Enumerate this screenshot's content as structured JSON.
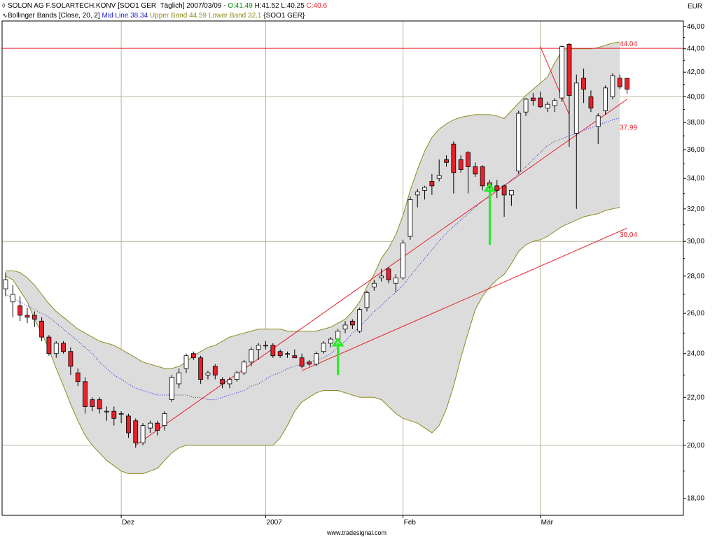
{
  "header": {
    "line1": {
      "instrument": "SOLON AG F.SOLARTECH.KONV [SOO1 GER  Täglich] 2007/03/09 - ",
      "open": "O:41.49",
      "high": " H:41.52",
      "low": " L:40.25",
      "close": " C:40.6"
    },
    "line2": {
      "indicator": "Bollinger Bands [Close, 20, 2]",
      "mid": " Mid Line 38.34",
      "bands": " Upper Band 44.59 Lower Band 32.1",
      "symbol": " {SOO1 GER}"
    }
  },
  "currency": "EUR",
  "footer": "www.tradesignal.com",
  "colors": {
    "up_candle": "#ffffff",
    "down_candle": "#e8202a",
    "band_fill": "#dcdcdc",
    "band_line": "#8c8a1e",
    "mid_line": "#2222cc",
    "trend_line": "#e8202a",
    "arrow": "#22ee22",
    "open_text": "#0a8a0a",
    "high_text": "#000000",
    "low_text": "#000000",
    "close_text": "#e8202a",
    "mid_text": "#2222cc",
    "bands_text": "#8c8a1e"
  },
  "chart_data": {
    "type": "candlestick",
    "ylim": [
      17.4,
      46.5
    ],
    "y_scale": "log",
    "yticks": [
      18,
      20,
      22,
      24,
      26,
      28,
      30,
      32,
      34,
      36,
      38,
      40,
      42,
      44,
      46
    ],
    "ytick_labels": [
      "18,00",
      "20,00",
      "22,00",
      "24,00",
      "26,00",
      "28,00",
      "30,00",
      "32,00",
      "34,00",
      "36,00",
      "38,00",
      "40,00",
      "42,00",
      "44,00",
      "46,00"
    ],
    "gridlines_y": [
      20,
      30,
      40
    ],
    "x_labels": [
      {
        "label": "Dez",
        "index": 16
      },
      {
        "label": "2007",
        "index": 36
      },
      {
        "label": "Feb",
        "index": 55
      },
      {
        "label": "Mär",
        "index": 74
      }
    ],
    "candles": [
      {
        "o": 27.3,
        "h": 28.2,
        "l": 26.9,
        "c": 27.8
      },
      {
        "o": 26.6,
        "h": 27.5,
        "l": 25.8,
        "c": 27.0
      },
      {
        "o": 26.4,
        "h": 26.9,
        "l": 25.6,
        "c": 25.9
      },
      {
        "o": 25.9,
        "h": 26.3,
        "l": 25.5,
        "c": 25.8
      },
      {
        "o": 25.9,
        "h": 26.1,
        "l": 25.3,
        "c": 25.7
      },
      {
        "o": 25.6,
        "h": 25.8,
        "l": 24.6,
        "c": 24.8
      },
      {
        "o": 24.8,
        "h": 24.9,
        "l": 23.9,
        "c": 24.0
      },
      {
        "o": 24.0,
        "h": 24.6,
        "l": 23.8,
        "c": 24.5
      },
      {
        "o": 24.5,
        "h": 24.6,
        "l": 24.0,
        "c": 24.1
      },
      {
        "o": 24.1,
        "h": 24.3,
        "l": 23.0,
        "c": 23.4
      },
      {
        "o": 23.1,
        "h": 23.3,
        "l": 22.5,
        "c": 22.7
      },
      {
        "o": 22.7,
        "h": 22.9,
        "l": 21.3,
        "c": 21.6
      },
      {
        "o": 21.9,
        "h": 22.0,
        "l": 21.4,
        "c": 21.6
      },
      {
        "o": 21.9,
        "h": 22.0,
        "l": 21.3,
        "c": 21.5
      },
      {
        "o": 21.4,
        "h": 21.6,
        "l": 21.0,
        "c": 21.4
      },
      {
        "o": 21.4,
        "h": 21.6,
        "l": 20.8,
        "c": 21.1
      },
      {
        "o": 21.3,
        "h": 21.4,
        "l": 20.9,
        "c": 21.3
      },
      {
        "o": 21.2,
        "h": 21.3,
        "l": 20.3,
        "c": 20.5
      },
      {
        "o": 21.0,
        "h": 21.1,
        "l": 19.9,
        "c": 20.1
      },
      {
        "o": 20.1,
        "h": 20.9,
        "l": 20.0,
        "c": 20.8
      },
      {
        "o": 20.7,
        "h": 21.0,
        "l": 20.5,
        "c": 20.9
      },
      {
        "o": 20.9,
        "h": 21.0,
        "l": 20.4,
        "c": 20.6
      },
      {
        "o": 20.8,
        "h": 21.4,
        "l": 20.6,
        "c": 21.3
      },
      {
        "o": 21.9,
        "h": 23.0,
        "l": 21.8,
        "c": 22.9
      },
      {
        "o": 22.6,
        "h": 23.3,
        "l": 22.4,
        "c": 23.1
      },
      {
        "o": 23.3,
        "h": 24.0,
        "l": 23.1,
        "c": 23.9
      },
      {
        "o": 24.0,
        "h": 24.1,
        "l": 23.7,
        "c": 23.8
      },
      {
        "o": 23.8,
        "h": 23.9,
        "l": 22.6,
        "c": 22.8
      },
      {
        "o": 23.0,
        "h": 23.2,
        "l": 22.8,
        "c": 23.1
      },
      {
        "o": 23.4,
        "h": 23.5,
        "l": 22.8,
        "c": 23.0
      },
      {
        "o": 22.8,
        "h": 22.9,
        "l": 22.4,
        "c": 22.6
      },
      {
        "o": 22.6,
        "h": 22.9,
        "l": 22.4,
        "c": 22.8
      },
      {
        "o": 22.8,
        "h": 23.2,
        "l": 22.7,
        "c": 23.1
      },
      {
        "o": 23.1,
        "h": 23.7,
        "l": 23.0,
        "c": 23.6
      },
      {
        "o": 23.6,
        "h": 24.3,
        "l": 23.4,
        "c": 24.2
      },
      {
        "o": 24.2,
        "h": 24.5,
        "l": 23.7,
        "c": 24.4
      },
      {
        "o": 24.4,
        "h": 24.6,
        "l": 24.2,
        "c": 24.4
      },
      {
        "o": 24.4,
        "h": 24.5,
        "l": 23.8,
        "c": 23.9
      },
      {
        "o": 24.1,
        "h": 24.2,
        "l": 23.8,
        "c": 23.9
      },
      {
        "o": 24.0,
        "h": 24.1,
        "l": 23.8,
        "c": 24.0
      },
      {
        "o": 23.9,
        "h": 24.2,
        "l": 23.8,
        "c": 23.8
      },
      {
        "o": 23.8,
        "h": 24.0,
        "l": 23.3,
        "c": 23.4
      },
      {
        "o": 23.6,
        "h": 23.7,
        "l": 23.4,
        "c": 23.5
      },
      {
        "o": 23.5,
        "h": 24.1,
        "l": 23.4,
        "c": 24.0
      },
      {
        "o": 24.1,
        "h": 24.6,
        "l": 24.0,
        "c": 24.5
      },
      {
        "o": 24.5,
        "h": 24.8,
        "l": 24.3,
        "c": 24.7
      },
      {
        "o": 24.7,
        "h": 25.2,
        "l": 24.6,
        "c": 25.1
      },
      {
        "o": 25.2,
        "h": 25.6,
        "l": 25.0,
        "c": 25.4
      },
      {
        "o": 25.6,
        "h": 25.7,
        "l": 25.2,
        "c": 25.4
      },
      {
        "o": 25.1,
        "h": 26.3,
        "l": 25.0,
        "c": 26.2
      },
      {
        "o": 26.3,
        "h": 27.2,
        "l": 26.1,
        "c": 27.1
      },
      {
        "o": 27.4,
        "h": 27.8,
        "l": 27.2,
        "c": 27.6
      },
      {
        "o": 27.9,
        "h": 28.4,
        "l": 27.7,
        "c": 28.0
      },
      {
        "o": 28.4,
        "h": 28.5,
        "l": 27.6,
        "c": 27.8
      },
      {
        "o": 27.6,
        "h": 28.1,
        "l": 27.1,
        "c": 27.9
      },
      {
        "o": 27.9,
        "h": 30.1,
        "l": 27.8,
        "c": 29.9
      },
      {
        "o": 30.3,
        "h": 32.8,
        "l": 30.1,
        "c": 32.6
      },
      {
        "o": 32.9,
        "h": 33.3,
        "l": 32.1,
        "c": 33.1
      },
      {
        "o": 33.2,
        "h": 33.5,
        "l": 32.6,
        "c": 33.4
      },
      {
        "o": 33.8,
        "h": 34.3,
        "l": 32.9,
        "c": 33.5
      },
      {
        "o": 34.0,
        "h": 35.3,
        "l": 33.8,
        "c": 34.2
      },
      {
        "o": 35.3,
        "h": 35.6,
        "l": 34.8,
        "c": 35.1
      },
      {
        "o": 36.4,
        "h": 36.6,
        "l": 33.0,
        "c": 34.4
      },
      {
        "o": 35.3,
        "h": 35.6,
        "l": 34.4,
        "c": 34.6
      },
      {
        "o": 35.8,
        "h": 35.9,
        "l": 33.0,
        "c": 34.8
      },
      {
        "o": 34.8,
        "h": 35.1,
        "l": 34.1,
        "c": 34.3
      },
      {
        "o": 34.8,
        "h": 34.9,
        "l": 33.2,
        "c": 33.5
      },
      {
        "o": 33.7,
        "h": 33.9,
        "l": 33.3,
        "c": 33.4
      },
      {
        "o": 33.5,
        "h": 33.9,
        "l": 32.7,
        "c": 33.2
      },
      {
        "o": 33.5,
        "h": 33.6,
        "l": 31.5,
        "c": 32.9
      },
      {
        "o": 32.9,
        "h": 33.2,
        "l": 32.2,
        "c": 33.2
      },
      {
        "o": 34.5,
        "h": 38.9,
        "l": 34.3,
        "c": 38.7
      },
      {
        "o": 38.8,
        "h": 39.9,
        "l": 38.5,
        "c": 39.8
      },
      {
        "o": 39.9,
        "h": 40.3,
        "l": 39.3,
        "c": 39.7
      },
      {
        "o": 39.9,
        "h": 40.4,
        "l": 39.1,
        "c": 39.2
      },
      {
        "o": 39.1,
        "h": 39.6,
        "l": 38.8,
        "c": 39.4
      },
      {
        "o": 39.3,
        "h": 39.9,
        "l": 38.8,
        "c": 39.7
      },
      {
        "o": 39.9,
        "h": 44.3,
        "l": 39.6,
        "c": 44.2
      },
      {
        "o": 44.4,
        "h": 44.5,
        "l": 36.2,
        "c": 40.1
      },
      {
        "o": 37.2,
        "h": 41.8,
        "l": 32.0,
        "c": 41.1
      },
      {
        "o": 41.5,
        "h": 42.3,
        "l": 39.5,
        "c": 40.6
      },
      {
        "o": 40.0,
        "h": 40.5,
        "l": 38.8,
        "c": 39.1
      },
      {
        "o": 37.7,
        "h": 38.7,
        "l": 36.4,
        "c": 38.5
      },
      {
        "o": 38.9,
        "h": 40.9,
        "l": 38.6,
        "c": 40.7
      },
      {
        "o": 40.0,
        "h": 41.9,
        "l": 39.8,
        "c": 41.7
      },
      {
        "o": 41.5,
        "h": 41.8,
        "l": 40.6,
        "c": 40.8
      },
      {
        "o": 41.49,
        "h": 41.52,
        "l": 40.25,
        "c": 40.6
      }
    ],
    "bollinger": {
      "upper": [
        28.3,
        28.3,
        28.2,
        27.9,
        27.5,
        27.0,
        26.5,
        26.1,
        25.8,
        25.5,
        25.2,
        25.0,
        24.8,
        24.6,
        24.5,
        24.4,
        24.2,
        24.0,
        23.8,
        23.6,
        23.5,
        23.4,
        23.3,
        23.3,
        23.4,
        23.6,
        23.9,
        24.1,
        24.3,
        24.4,
        24.6,
        24.8,
        24.9,
        25.0,
        25.1,
        25.2,
        25.2,
        25.2,
        25.2,
        25.1,
        25.1,
        25.1,
        25.1,
        25.1,
        25.2,
        25.3,
        25.5,
        25.7,
        26.1,
        26.6,
        27.4,
        28.1,
        29.0,
        29.6,
        30.4,
        31.6,
        33.2,
        34.6,
        35.9,
        36.9,
        37.5,
        37.9,
        38.2,
        38.4,
        38.5,
        38.6,
        38.6,
        38.6,
        38.5,
        38.3,
        38.9,
        39.5,
        40.1,
        40.6,
        41.1,
        41.6,
        42.8,
        43.8,
        44.0,
        44.0,
        44.0,
        44.0,
        44.1,
        44.3,
        44.5,
        44.6
      ],
      "lower": [
        28.0,
        27.8,
        27.2,
        26.6,
        25.7,
        25.0,
        24.2,
        23.3,
        22.5,
        21.7,
        21.0,
        20.4,
        20.0,
        19.7,
        19.4,
        19.2,
        19.0,
        18.9,
        18.9,
        18.9,
        19.0,
        19.1,
        19.4,
        19.7,
        19.9,
        20.0,
        20.0,
        20.0,
        20.0,
        20.0,
        20.0,
        20.0,
        20.0,
        20.0,
        20.0,
        20.0,
        20.0,
        20.0,
        20.3,
        20.8,
        21.4,
        21.8,
        22.0,
        22.2,
        22.3,
        22.3,
        22.3,
        22.2,
        22.1,
        22.0,
        22.0,
        22.0,
        21.9,
        21.6,
        21.3,
        21.1,
        21.0,
        20.9,
        20.7,
        20.5,
        20.8,
        21.5,
        22.5,
        23.8,
        25.0,
        26.2,
        26.9,
        27.4,
        27.8,
        28.1,
        28.7,
        29.4,
        29.8,
        30.0,
        30.1,
        30.3,
        30.6,
        30.9,
        31.1,
        31.3,
        31.5,
        31.6,
        31.7,
        31.9,
        32.0,
        32.1
      ],
      "mid": [
        27.0,
        26.8,
        26.6,
        26.4,
        26.2,
        26.0,
        25.8,
        25.5,
        25.2,
        24.9,
        24.6,
        24.3,
        24.0,
        23.6,
        23.3,
        23.0,
        22.8,
        22.6,
        22.4,
        22.3,
        22.2,
        22.1,
        22.1,
        22.1,
        22.1,
        22.1,
        22.0,
        22.0,
        21.9,
        21.9,
        22.0,
        22.1,
        22.2,
        22.3,
        22.5,
        22.6,
        22.8,
        23.0,
        23.1,
        23.3,
        23.4,
        23.5,
        23.6,
        23.7,
        23.8,
        24.0,
        24.3,
        24.6,
        25.0,
        25.3,
        25.7,
        26.1,
        26.4,
        26.8,
        27.1,
        27.5,
        28.0,
        28.5,
        29.0,
        29.5,
        30.0,
        30.5,
        30.9,
        31.3,
        31.7,
        32.1,
        32.5,
        32.8,
        33.2,
        33.5,
        33.9,
        34.3,
        34.8,
        35.3,
        35.8,
        36.3,
        36.6,
        36.8,
        37.0,
        37.2,
        37.4,
        37.6,
        37.8,
        38.0,
        38.2,
        38.34
      ]
    },
    "resistance_line": {
      "value": 44.04,
      "label": "44.04"
    },
    "trend_lines": [
      {
        "from": {
          "index": 18,
          "price": 20.0
        },
        "to": {
          "index": 86,
          "price": 39.8
        },
        "label": "37.99"
      },
      {
        "from": {
          "index": 41,
          "price": 23.2
        },
        "to": {
          "index": 86,
          "price": 30.8
        },
        "label": "30.04"
      },
      {
        "from": {
          "index": 74,
          "price": 44.2
        },
        "to": {
          "index": 78,
          "price": 38.6
        },
        "label": ""
      }
    ],
    "arrows": [
      {
        "index": 46,
        "from_price": 23.0,
        "to_price": 24.7
      },
      {
        "index": 67,
        "from_price": 29.8,
        "to_price": 33.6
      }
    ]
  }
}
